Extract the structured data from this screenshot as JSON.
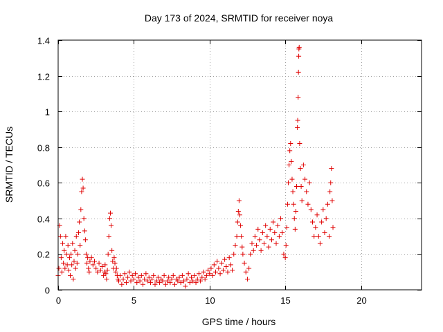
{
  "chart_data": {
    "type": "scatter",
    "title": "Day 173 of 2024, SRMTID for receiver noya",
    "xlabel": "GPS time / hours",
    "ylabel": "SRMTID / TECUs",
    "xlim": [
      0,
      24
    ],
    "ylim": [
      0,
      1.4
    ],
    "xticks": [
      0,
      5,
      10,
      15,
      20
    ],
    "xtick_labels": [
      "0",
      "5",
      "10",
      "15",
      "20"
    ],
    "yticks": [
      0,
      0.2,
      0.4,
      0.6,
      0.8,
      1,
      1.2,
      1.4
    ],
    "ytick_labels": [
      "0",
      "0.2",
      "0.4",
      "0.6",
      "0.8",
      "1",
      "1.2",
      "1.4"
    ],
    "grid": true,
    "marker": "+",
    "color": "#e00000",
    "series": [
      {
        "name": "SRMTID",
        "points": [
          [
            0.0,
            0.08
          ],
          [
            0.05,
            0.12
          ],
          [
            0.1,
            0.36
          ],
          [
            0.15,
            0.3
          ],
          [
            0.2,
            0.18
          ],
          [
            0.25,
            0.1
          ],
          [
            0.3,
            0.26
          ],
          [
            0.35,
            0.15
          ],
          [
            0.4,
            0.22
          ],
          [
            0.45,
            0.12
          ],
          [
            0.5,
            0.3
          ],
          [
            0.55,
            0.2
          ],
          [
            0.6,
            0.14
          ],
          [
            0.65,
            0.25
          ],
          [
            0.7,
            0.11
          ],
          [
            0.75,
            0.18
          ],
          [
            0.8,
            0.08
          ],
          [
            0.85,
            0.2
          ],
          [
            0.9,
            0.14
          ],
          [
            0.95,
            0.26
          ],
          [
            1.0,
            0.06
          ],
          [
            1.05,
            0.16
          ],
          [
            1.1,
            0.22
          ],
          [
            1.15,
            0.12
          ],
          [
            1.2,
            0.3
          ],
          [
            1.25,
            0.15
          ],
          [
            1.3,
            0.2
          ],
          [
            1.35,
            0.32
          ],
          [
            1.4,
            0.38
          ],
          [
            1.45,
            0.25
          ],
          [
            1.5,
            0.45
          ],
          [
            1.55,
            0.55
          ],
          [
            1.6,
            0.62
          ],
          [
            1.65,
            0.57
          ],
          [
            1.7,
            0.4
          ],
          [
            1.75,
            0.33
          ],
          [
            1.8,
            0.28
          ],
          [
            1.85,
            0.2
          ],
          [
            1.9,
            0.15
          ],
          [
            1.95,
            0.18
          ],
          [
            2.0,
            0.12
          ],
          [
            2.05,
            0.1
          ],
          [
            2.1,
            0.16
          ],
          [
            2.2,
            0.18
          ],
          [
            2.3,
            0.14
          ],
          [
            2.4,
            0.16
          ],
          [
            2.5,
            0.12
          ],
          [
            2.6,
            0.1
          ],
          [
            2.7,
            0.15
          ],
          [
            2.8,
            0.11
          ],
          [
            2.9,
            0.13
          ],
          [
            3.0,
            0.08
          ],
          [
            3.05,
            0.1
          ],
          [
            3.1,
            0.14
          ],
          [
            3.15,
            0.09
          ],
          [
            3.2,
            0.06
          ],
          [
            3.25,
            0.11
          ],
          [
            3.3,
            0.2
          ],
          [
            3.35,
            0.3
          ],
          [
            3.4,
            0.4
          ],
          [
            3.45,
            0.43
          ],
          [
            3.5,
            0.36
          ],
          [
            3.55,
            0.22
          ],
          [
            3.6,
            0.16
          ],
          [
            3.65,
            0.12
          ],
          [
            3.7,
            0.18
          ],
          [
            3.75,
            0.15
          ],
          [
            3.8,
            0.1
          ],
          [
            3.85,
            0.12
          ],
          [
            3.9,
            0.08
          ],
          [
            3.95,
            0.06
          ],
          [
            4.0,
            0.05
          ],
          [
            4.1,
            0.08
          ],
          [
            4.2,
            0.03
          ],
          [
            4.3,
            0.06
          ],
          [
            4.4,
            0.09
          ],
          [
            4.5,
            0.04
          ],
          [
            4.6,
            0.07
          ],
          [
            4.7,
            0.1
          ],
          [
            4.8,
            0.05
          ],
          [
            4.9,
            0.08
          ],
          [
            5.0,
            0.06
          ],
          [
            5.1,
            0.09
          ],
          [
            5.2,
            0.04
          ],
          [
            5.3,
            0.07
          ],
          [
            5.4,
            0.05
          ],
          [
            5.5,
            0.08
          ],
          [
            5.6,
            0.03
          ],
          [
            5.7,
            0.06
          ],
          [
            5.8,
            0.09
          ],
          [
            5.9,
            0.05
          ],
          [
            6.0,
            0.07
          ],
          [
            6.1,
            0.04
          ],
          [
            6.2,
            0.06
          ],
          [
            6.3,
            0.08
          ],
          [
            6.4,
            0.03
          ],
          [
            6.5,
            0.05
          ],
          [
            6.6,
            0.07
          ],
          [
            6.7,
            0.04
          ],
          [
            6.8,
            0.06
          ],
          [
            6.9,
            0.05
          ],
          [
            7.0,
            0.08
          ],
          [
            7.1,
            0.03
          ],
          [
            7.2,
            0.05
          ],
          [
            7.3,
            0.07
          ],
          [
            7.4,
            0.04
          ],
          [
            7.5,
            0.06
          ],
          [
            7.6,
            0.08
          ],
          [
            7.7,
            0.03
          ],
          [
            7.8,
            0.06
          ],
          [
            7.9,
            0.05
          ],
          [
            8.0,
            0.07
          ],
          [
            8.1,
            0.04
          ],
          [
            8.2,
            0.08
          ],
          [
            8.3,
            0.05
          ],
          [
            8.4,
            0.02
          ],
          [
            8.5,
            0.06
          ],
          [
            8.6,
            0.09
          ],
          [
            8.7,
            0.04
          ],
          [
            8.8,
            0.07
          ],
          [
            8.9,
            0.05
          ],
          [
            9.0,
            0.08
          ],
          [
            9.1,
            0.04
          ],
          [
            9.2,
            0.06
          ],
          [
            9.3,
            0.09
          ],
          [
            9.4,
            0.05
          ],
          [
            9.5,
            0.07
          ],
          [
            9.6,
            0.1
          ],
          [
            9.7,
            0.06
          ],
          [
            9.8,
            0.08
          ],
          [
            9.9,
            0.11
          ],
          [
            10.0,
            0.09
          ],
          [
            10.1,
            0.12
          ],
          [
            10.2,
            0.08
          ],
          [
            10.3,
            0.14
          ],
          [
            10.4,
            0.1
          ],
          [
            10.5,
            0.16
          ],
          [
            10.6,
            0.12
          ],
          [
            10.7,
            0.09
          ],
          [
            10.8,
            0.15
          ],
          [
            10.9,
            0.11
          ],
          [
            11.0,
            0.17
          ],
          [
            11.1,
            0.13
          ],
          [
            11.2,
            0.1
          ],
          [
            11.3,
            0.18
          ],
          [
            11.4,
            0.14
          ],
          [
            11.5,
            0.11
          ],
          [
            11.6,
            0.2
          ],
          [
            11.7,
            0.25
          ],
          [
            11.8,
            0.3
          ],
          [
            11.85,
            0.38
          ],
          [
            11.9,
            0.44
          ],
          [
            11.95,
            0.5
          ],
          [
            12.0,
            0.42
          ],
          [
            12.05,
            0.36
          ],
          [
            12.1,
            0.3
          ],
          [
            12.15,
            0.24
          ],
          [
            12.2,
            0.2
          ],
          [
            12.3,
            0.15
          ],
          [
            12.4,
            0.1
          ],
          [
            12.5,
            0.06
          ],
          [
            12.6,
            0.12
          ],
          [
            12.7,
            0.2
          ],
          [
            12.8,
            0.26
          ],
          [
            12.9,
            0.22
          ],
          [
            13.0,
            0.3
          ],
          [
            13.1,
            0.25
          ],
          [
            13.2,
            0.34
          ],
          [
            13.3,
            0.28
          ],
          [
            13.4,
            0.22
          ],
          [
            13.5,
            0.32
          ],
          [
            13.6,
            0.26
          ],
          [
            13.7,
            0.36
          ],
          [
            13.8,
            0.3
          ],
          [
            13.9,
            0.24
          ],
          [
            14.0,
            0.34
          ],
          [
            14.1,
            0.28
          ],
          [
            14.2,
            0.38
          ],
          [
            14.3,
            0.32
          ],
          [
            14.4,
            0.26
          ],
          [
            14.5,
            0.36
          ],
          [
            14.6,
            0.3
          ],
          [
            14.7,
            0.4
          ],
          [
            14.8,
            0.32
          ],
          [
            14.9,
            0.2
          ],
          [
            15.0,
            0.18
          ],
          [
            15.05,
            0.25
          ],
          [
            15.1,
            0.35
          ],
          [
            15.15,
            0.48
          ],
          [
            15.2,
            0.6
          ],
          [
            15.25,
            0.7
          ],
          [
            15.3,
            0.78
          ],
          [
            15.35,
            0.82
          ],
          [
            15.4,
            0.72
          ],
          [
            15.45,
            0.62
          ],
          [
            15.5,
            0.55
          ],
          [
            15.55,
            0.48
          ],
          [
            15.6,
            0.4
          ],
          [
            15.65,
            0.34
          ],
          [
            15.7,
            0.44
          ],
          [
            15.75,
            0.58
          ],
          [
            15.8,
            0.91
          ],
          [
            15.82,
            0.95
          ],
          [
            15.85,
            1.08
          ],
          [
            15.87,
            1.22
          ],
          [
            15.89,
            1.31
          ],
          [
            15.9,
            1.35
          ],
          [
            15.92,
            1.36
          ],
          [
            15.95,
            0.82
          ],
          [
            16.0,
            0.68
          ],
          [
            16.05,
            0.58
          ],
          [
            16.1,
            0.5
          ],
          [
            16.2,
            0.7
          ],
          [
            16.3,
            0.62
          ],
          [
            16.4,
            0.55
          ],
          [
            16.5,
            0.48
          ],
          [
            16.6,
            0.6
          ],
          [
            16.7,
            0.45
          ],
          [
            16.8,
            0.38
          ],
          [
            16.9,
            0.3
          ],
          [
            17.0,
            0.35
          ],
          [
            17.1,
            0.42
          ],
          [
            17.2,
            0.3
          ],
          [
            17.3,
            0.26
          ],
          [
            17.4,
            0.38
          ],
          [
            17.5,
            0.45
          ],
          [
            17.6,
            0.32
          ],
          [
            17.7,
            0.4
          ],
          [
            17.8,
            0.48
          ],
          [
            17.9,
            0.3
          ],
          [
            17.95,
            0.55
          ],
          [
            18.0,
            0.6
          ],
          [
            18.05,
            0.68
          ],
          [
            18.1,
            0.5
          ],
          [
            18.15,
            0.35
          ]
        ]
      }
    ]
  }
}
